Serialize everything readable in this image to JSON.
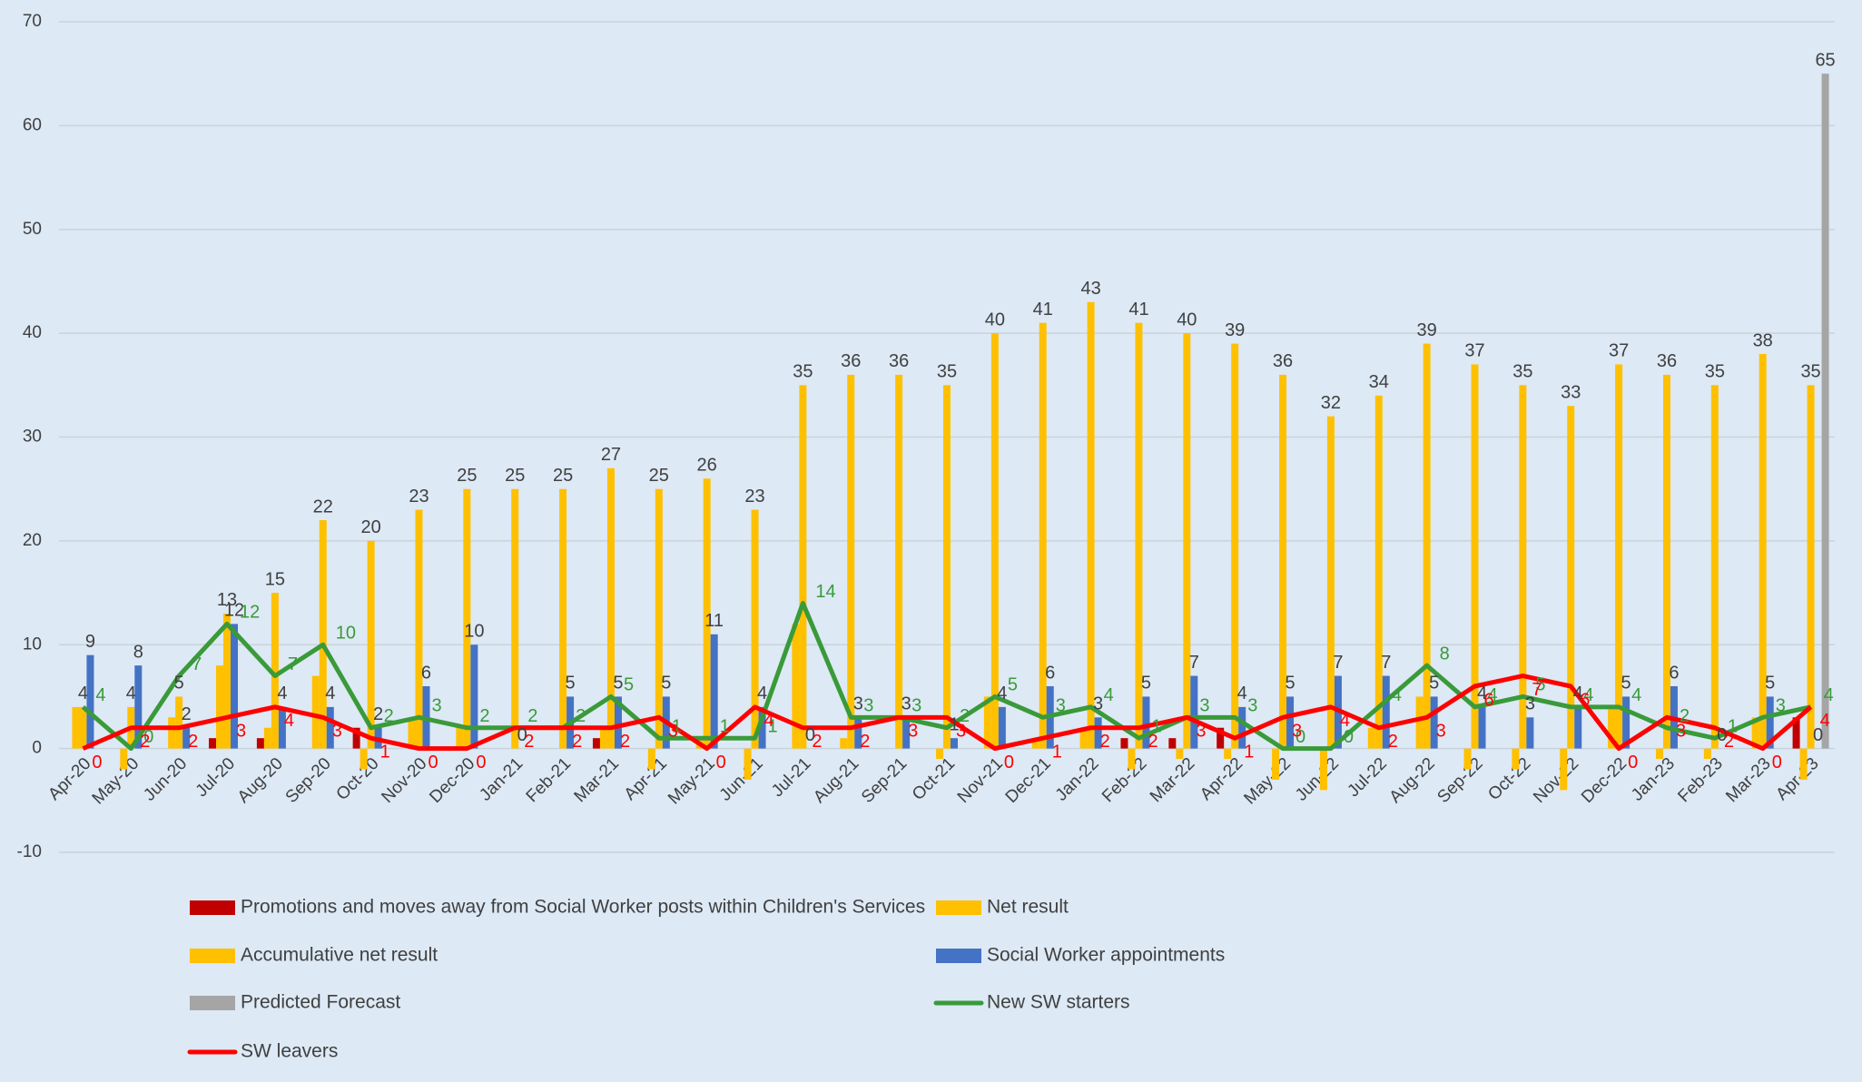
{
  "chart_data": {
    "type": "bar",
    "categories": [
      "Apr-20",
      "May-20",
      "Jun-20",
      "Jul-20",
      "Aug-20",
      "Sep-20",
      "Oct-20",
      "Nov-20",
      "Dec-20",
      "Jan-21",
      "Feb-21",
      "Mar-21",
      "Apr-21",
      "May-21",
      "Jun-21",
      "Jul-21",
      "Aug-21",
      "Sep-21",
      "Oct-21",
      "Nov-21",
      "Dec-21",
      "Jan-22",
      "Feb-22",
      "Mar-22",
      "Apr-22",
      "May-22",
      "Jun-22",
      "Jul-22",
      "Aug-22",
      "Sep-22",
      "Oct-22",
      "Nov-22",
      "Dec-22",
      "Jan-23",
      "Feb-23",
      "Mar-23",
      "Apr-23"
    ],
    "series": [
      {
        "name": "Promotions and moves away from Social Worker posts within Children's Services",
        "type": "bar",
        "color": "#c00000",
        "data_labels": false,
        "values": [
          0,
          0,
          0,
          1,
          1,
          0,
          2,
          0,
          0,
          0,
          0,
          1,
          0,
          0,
          0,
          0,
          0,
          0,
          0,
          0,
          0,
          0,
          1,
          1,
          2,
          0,
          0,
          0,
          0,
          0,
          0,
          0,
          0,
          0,
          0,
          0,
          3
        ]
      },
      {
        "name": "Net result",
        "type": "bar",
        "color": "#ffc000",
        "data_labels": false,
        "values": [
          4,
          -2,
          3,
          8,
          2,
          7,
          -2,
          3,
          2,
          0,
          0,
          2,
          -2,
          1,
          -3,
          12,
          1,
          0,
          -1,
          5,
          1,
          2,
          -2,
          -1,
          -1,
          -3,
          -4,
          2,
          5,
          -2,
          -2,
          -4,
          4,
          -1,
          -1,
          3,
          -3
        ]
      },
      {
        "name": "Accumulative net result",
        "type": "bar",
        "color": "#ffc000",
        "data_labels": true,
        "values": [
          4,
          4,
          5,
          13,
          15,
          22,
          20,
          23,
          25,
          25,
          25,
          27,
          25,
          26,
          23,
          35,
          36,
          36,
          35,
          40,
          41,
          43,
          41,
          40,
          39,
          36,
          32,
          34,
          39,
          37,
          35,
          33,
          37,
          36,
          35,
          38,
          35
        ]
      },
      {
        "name": "Social Worker appointments",
        "type": "bar",
        "color": "#4472c4",
        "data_labels": true,
        "values": [
          9,
          8,
          2,
          12,
          4,
          4,
          2,
          6,
          10,
          0,
          5,
          5,
          5,
          11,
          4,
          0,
          3,
          3,
          1,
          4,
          6,
          3,
          5,
          7,
          4,
          5,
          7,
          7,
          5,
          4,
          3,
          4,
          5,
          6,
          0,
          5,
          0
        ]
      },
      {
        "name": "Predicted Forecast",
        "type": "bar",
        "color": "#a5a5a5",
        "data_labels": true,
        "values": [
          null,
          null,
          null,
          null,
          null,
          null,
          null,
          null,
          null,
          null,
          null,
          null,
          null,
          null,
          null,
          null,
          null,
          null,
          null,
          null,
          null,
          null,
          null,
          null,
          null,
          null,
          null,
          null,
          null,
          null,
          null,
          null,
          null,
          null,
          null,
          null,
          65
        ]
      },
      {
        "name": "New SW starters",
        "type": "line",
        "color": "#3a9a3a",
        "data_labels": true,
        "values": [
          4,
          0,
          7,
          12,
          7,
          10,
          2,
          3,
          2,
          2,
          2,
          5,
          1,
          1,
          1,
          14,
          3,
          3,
          2,
          5,
          3,
          4,
          1,
          3,
          3,
          0,
          0,
          4,
          8,
          4,
          5,
          4,
          4,
          2,
          1,
          3,
          4
        ]
      },
      {
        "name": "SW leavers",
        "type": "line",
        "color": "#ff0000",
        "data_labels": true,
        "values": [
          0,
          2,
          2,
          3,
          4,
          3,
          1,
          0,
          0,
          2,
          2,
          2,
          3,
          0,
          4,
          2,
          2,
          3,
          3,
          0,
          1,
          2,
          2,
          3,
          1,
          3,
          4,
          2,
          3,
          6,
          7,
          6,
          0,
          3,
          2,
          0,
          4
        ]
      }
    ],
    "ylim": [
      -10,
      70
    ],
    "yticks": [
      -10,
      0,
      10,
      20,
      30,
      40,
      50,
      60,
      70
    ],
    "grid": true
  }
}
